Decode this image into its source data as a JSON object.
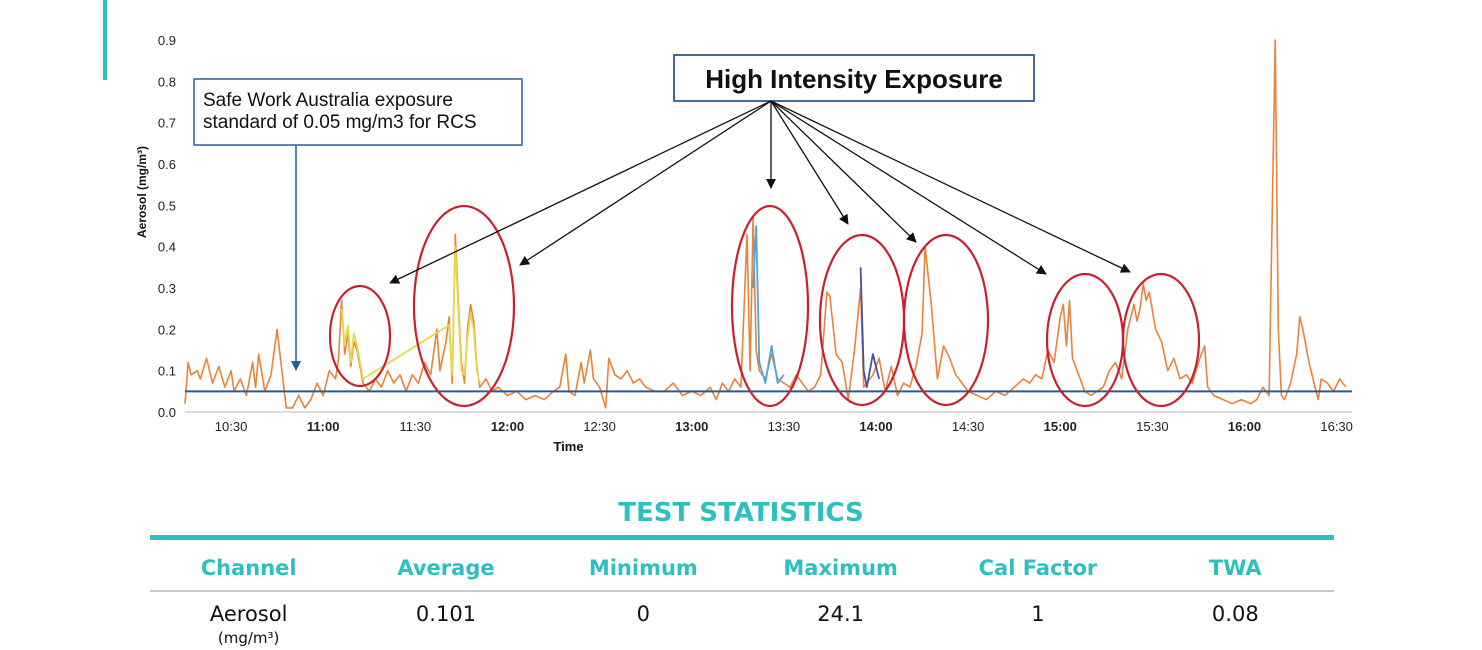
{
  "chart_data": {
    "type": "line",
    "xlabel": "Time",
    "ylabel": "Aerosol (mg/m³)",
    "ylim": [
      0,
      0.9
    ],
    "xlim": [
      "10:15",
      "16:35"
    ],
    "y_ticks": [
      "0.0",
      "0.1",
      "0.2",
      "0.3",
      "0.4",
      "0.5",
      "0.6",
      "0.7",
      "0.8",
      "0.9"
    ],
    "x_ticks": [
      {
        "label": "10:30",
        "t": "10:30",
        "bold": false
      },
      {
        "label": "11:00",
        "t": "11:00",
        "bold": true
      },
      {
        "label": "11:30",
        "t": "11:30",
        "bold": false
      },
      {
        "label": "12:00",
        "t": "12:00",
        "bold": true
      },
      {
        "label": "12:30",
        "t": "12:30",
        "bold": false
      },
      {
        "label": "13:00",
        "t": "13:00",
        "bold": true
      },
      {
        "label": "13:30",
        "t": "13:30",
        "bold": false
      },
      {
        "label": "14:00",
        "t": "14:00",
        "bold": true
      },
      {
        "label": "14:30",
        "t": "14:30",
        "bold": false
      },
      {
        "label": "15:00",
        "t": "15:00",
        "bold": true
      },
      {
        "label": "15:30",
        "t": "15:30",
        "bold": false
      },
      {
        "label": "16:00",
        "t": "16:00",
        "bold": true
      },
      {
        "label": "16:30",
        "t": "16:30",
        "bold": false
      }
    ],
    "grid": false,
    "reference_line": {
      "y": 0.05,
      "color": "#1f5f9f"
    },
    "series": [
      {
        "color": "#e8833a",
        "points": [
          [
            "10:15",
            0.02
          ],
          [
            "10:16",
            0.12
          ],
          [
            "10:17",
            0.09
          ],
          [
            "10:19",
            0.1
          ],
          [
            "10:20",
            0.08
          ],
          [
            "10:22",
            0.13
          ],
          [
            "10:24",
            0.07
          ],
          [
            "10:26",
            0.11
          ],
          [
            "10:28",
            0.06
          ],
          [
            "10:30",
            0.1
          ],
          [
            "10:31",
            0.05
          ],
          [
            "10:33",
            0.08
          ],
          [
            "10:35",
            0.04
          ],
          [
            "10:37",
            0.12
          ],
          [
            "10:38",
            0.06
          ],
          [
            "10:39",
            0.14
          ],
          [
            "10:41",
            0.05
          ],
          [
            "10:43",
            0.09
          ],
          [
            "10:45",
            0.2
          ],
          [
            "10:47",
            0.07
          ],
          [
            "10:48",
            0.01
          ],
          [
            "10:50",
            0.01
          ],
          [
            "10:52",
            0.04
          ],
          [
            "10:54",
            0.01
          ],
          [
            "10:56",
            0.03
          ],
          [
            "10:58",
            0.07
          ],
          [
            "11:00",
            0.04
          ],
          [
            "11:02",
            0.1
          ],
          [
            "11:04",
            0.08
          ],
          [
            "11:05",
            0.13
          ],
          [
            "11:06",
            0.27
          ],
          [
            "11:07",
            0.14
          ],
          [
            "11:08",
            0.19
          ],
          [
            "11:09",
            0.11
          ],
          [
            "11:10",
            0.17
          ],
          [
            "11:11",
            0.15
          ],
          [
            "11:13",
            0.07
          ],
          [
            "11:15",
            0.05
          ],
          [
            "11:17",
            0.08
          ],
          [
            "11:19",
            0.06
          ],
          [
            "11:21",
            0.1
          ],
          [
            "11:23",
            0.07
          ],
          [
            "11:25",
            0.09
          ],
          [
            "11:27",
            0.05
          ],
          [
            "11:29",
            0.09
          ],
          [
            "11:31",
            0.07
          ],
          [
            "11:33",
            0.12
          ],
          [
            "11:35",
            0.09
          ],
          [
            "11:37",
            0.2
          ],
          [
            "11:38",
            0.1
          ],
          [
            "11:40",
            0.17
          ],
          [
            "11:41",
            0.23
          ],
          [
            "11:42",
            0.07
          ],
          [
            "11:43",
            0.43
          ],
          [
            "11:44",
            0.27
          ],
          [
            "11:45",
            0.12
          ],
          [
            "11:46",
            0.07
          ],
          [
            "11:47",
            0.2
          ],
          [
            "11:48",
            0.26
          ],
          [
            "11:49",
            0.22
          ],
          [
            "11:50",
            0.11
          ],
          [
            "11:51",
            0.06
          ],
          [
            "11:53",
            0.08
          ],
          [
            "11:55",
            0.05
          ],
          [
            "11:57",
            0.06
          ],
          [
            "12:00",
            0.04
          ],
          [
            "12:03",
            0.05
          ],
          [
            "12:06",
            0.03
          ],
          [
            "12:09",
            0.04
          ],
          [
            "12:12",
            0.03
          ],
          [
            "12:15",
            0.05
          ],
          [
            "12:17",
            0.06
          ],
          [
            "12:19",
            0.14
          ],
          [
            "12:20",
            0.05
          ],
          [
            "12:22",
            0.04
          ],
          [
            "12:24",
            0.12
          ],
          [
            "12:25",
            0.07
          ],
          [
            "12:27",
            0.15
          ],
          [
            "12:28",
            0.08
          ],
          [
            "12:30",
            0.06
          ],
          [
            "12:32",
            0.01
          ],
          [
            "12:33",
            0.13
          ],
          [
            "12:35",
            0.09
          ],
          [
            "12:37",
            0.08
          ],
          [
            "12:39",
            0.1
          ],
          [
            "12:41",
            0.07
          ],
          [
            "12:43",
            0.08
          ],
          [
            "12:45",
            0.06
          ],
          [
            "12:48",
            0.05
          ],
          [
            "12:51",
            0.05
          ],
          [
            "12:54",
            0.07
          ],
          [
            "12:57",
            0.04
          ],
          [
            "13:00",
            0.05
          ],
          [
            "13:03",
            0.04
          ],
          [
            "13:06",
            0.06
          ],
          [
            "13:08",
            0.03
          ],
          [
            "13:10",
            0.07
          ],
          [
            "13:12",
            0.05
          ],
          [
            "13:14",
            0.08
          ],
          [
            "13:16",
            0.06
          ],
          [
            "13:18",
            0.43
          ],
          [
            "13:19",
            0.1
          ],
          [
            "13:20",
            0.47
          ],
          [
            "13:21",
            0.15
          ],
          [
            "13:22",
            0.1
          ],
          [
            "13:24",
            0.08
          ],
          [
            "13:26",
            0.14
          ],
          [
            "13:28",
            0.08
          ],
          [
            "13:30",
            0.07
          ],
          [
            "13:32",
            0.06
          ],
          [
            "13:34",
            0.09
          ],
          [
            "13:36",
            0.07
          ],
          [
            "13:38",
            0.05
          ],
          [
            "13:40",
            0.06
          ],
          [
            "13:42",
            0.09
          ],
          [
            "13:44",
            0.29
          ],
          [
            "13:45",
            0.28
          ],
          [
            "13:47",
            0.14
          ],
          [
            "13:49",
            0.12
          ],
          [
            "13:51",
            0.03
          ],
          [
            "13:53",
            0.15
          ],
          [
            "13:55",
            0.3
          ],
          [
            "13:56",
            0.06
          ],
          [
            "13:57",
            0.07
          ],
          [
            "13:59",
            0.09
          ],
          [
            "14:01",
            0.13
          ],
          [
            "14:03",
            0.05
          ],
          [
            "14:05",
            0.11
          ],
          [
            "14:07",
            0.04
          ],
          [
            "14:09",
            0.07
          ],
          [
            "14:11",
            0.06
          ],
          [
            "14:13",
            0.11
          ],
          [
            "14:15",
            0.19
          ],
          [
            "14:16",
            0.4
          ],
          [
            "14:18",
            0.26
          ],
          [
            "14:20",
            0.08
          ],
          [
            "14:22",
            0.16
          ],
          [
            "14:24",
            0.13
          ],
          [
            "14:26",
            0.09
          ],
          [
            "14:28",
            0.07
          ],
          [
            "14:30",
            0.05
          ],
          [
            "14:33",
            0.04
          ],
          [
            "14:36",
            0.03
          ],
          [
            "14:39",
            0.05
          ],
          [
            "14:42",
            0.04
          ],
          [
            "14:45",
            0.06
          ],
          [
            "14:48",
            0.08
          ],
          [
            "14:50",
            0.07
          ],
          [
            "14:52",
            0.09
          ],
          [
            "14:54",
            0.08
          ],
          [
            "14:56",
            0.15
          ],
          [
            "14:58",
            0.12
          ],
          [
            "15:00",
            0.23
          ],
          [
            "15:01",
            0.26
          ],
          [
            "15:02",
            0.16
          ],
          [
            "15:03",
            0.27
          ],
          [
            "15:04",
            0.13
          ],
          [
            "15:06",
            0.09
          ],
          [
            "15:08",
            0.05
          ],
          [
            "15:10",
            0.04
          ],
          [
            "15:12",
            0.05
          ],
          [
            "15:14",
            0.06
          ],
          [
            "15:16",
            0.1
          ],
          [
            "15:18",
            0.12
          ],
          [
            "15:20",
            0.08
          ],
          [
            "15:22",
            0.2
          ],
          [
            "15:23",
            0.23
          ],
          [
            "15:24",
            0.26
          ],
          [
            "15:25",
            0.22
          ],
          [
            "15:26",
            0.25
          ],
          [
            "15:27",
            0.31
          ],
          [
            "15:28",
            0.27
          ],
          [
            "15:29",
            0.29
          ],
          [
            "15:31",
            0.2
          ],
          [
            "15:33",
            0.17
          ],
          [
            "15:35",
            0.1
          ],
          [
            "15:37",
            0.13
          ],
          [
            "15:39",
            0.08
          ],
          [
            "15:41",
            0.09
          ],
          [
            "15:43",
            0.07
          ],
          [
            "15:45",
            0.12
          ],
          [
            "15:47",
            0.16
          ],
          [
            "15:48",
            0.06
          ],
          [
            "15:50",
            0.04
          ],
          [
            "15:53",
            0.03
          ],
          [
            "15:56",
            0.02
          ],
          [
            "15:59",
            0.03
          ],
          [
            "16:02",
            0.02
          ],
          [
            "16:04",
            0.03
          ],
          [
            "16:06",
            0.06
          ],
          [
            "16:08",
            0.04
          ],
          [
            "16:10",
            0.9
          ],
          [
            "16:11",
            0.2
          ],
          [
            "16:12",
            0.04
          ],
          [
            "16:13",
            0.03
          ],
          [
            "16:15",
            0.07
          ],
          [
            "16:17",
            0.14
          ],
          [
            "16:18",
            0.23
          ],
          [
            "16:19",
            0.2
          ],
          [
            "16:21",
            0.12
          ],
          [
            "16:23",
            0.06
          ],
          [
            "16:24",
            0.03
          ],
          [
            "16:25",
            0.08
          ],
          [
            "16:27",
            0.07
          ],
          [
            "16:29",
            0.05
          ],
          [
            "16:31",
            0.08
          ],
          [
            "16:33",
            0.06
          ]
        ]
      },
      {
        "color": "#e6d84a",
        "points": [
          [
            "11:06",
            0.25
          ],
          [
            "11:07",
            0.16
          ],
          [
            "11:08",
            0.21
          ],
          [
            "11:09",
            0.12
          ],
          [
            "11:10",
            0.19
          ],
          [
            "11:11",
            0.16
          ],
          [
            "11:13",
            0.08
          ],
          [
            "11:41",
            0.21
          ],
          [
            "11:42",
            0.09
          ],
          [
            "11:43",
            0.4
          ],
          [
            "11:44",
            0.25
          ],
          [
            "11:45",
            0.1
          ],
          [
            "11:46",
            0.09
          ],
          [
            "11:47",
            0.18
          ],
          [
            "11:48",
            0.24
          ],
          [
            "11:49",
            0.2
          ],
          [
            "11:50",
            0.1
          ],
          [
            "11:51",
            0.07
          ]
        ]
      },
      {
        "color": "#4da6d8",
        "points": [
          [
            "13:20",
            0.3
          ],
          [
            "13:21",
            0.45
          ],
          [
            "13:22",
            0.12
          ],
          [
            "13:24",
            0.07
          ],
          [
            "13:26",
            0.16
          ],
          [
            "13:28",
            0.07
          ],
          [
            "13:30",
            0.09
          ]
        ]
      },
      {
        "color": "#4b4f9e",
        "points": [
          [
            "13:55",
            0.35
          ],
          [
            "13:56",
            0.1
          ],
          [
            "13:57",
            0.06
          ],
          [
            "13:59",
            0.14
          ],
          [
            "14:01",
            0.08
          ]
        ]
      }
    ],
    "highlights": [
      "11:03-11:12",
      "11:36-11:52",
      "13:15-13:26",
      "13:42-13:59",
      "14:07-14:21",
      "14:56-15:09",
      "15:19-15:31"
    ],
    "annotations": [
      {
        "text_lines": [
          "Safe Work Australia exposure",
          "standard of 0.05 mg/m3 for RCS"
        ],
        "arrow_to": [
          "10:51",
          0.1
        ]
      },
      {
        "text_lines": [
          "High Intensity Exposure"
        ],
        "arrows_to": [
          [
            "11:05",
            0.3
          ],
          [
            "11:58",
            0.35
          ],
          [
            "13:20",
            0.53
          ],
          [
            "13:49",
            0.44
          ],
          [
            "14:12",
            0.41
          ],
          [
            "14:55",
            0.33
          ],
          [
            "15:26",
            0.33
          ]
        ]
      }
    ]
  },
  "stats": {
    "title": "TEST STATISTICS",
    "headers": [
      "Channel",
      "Average",
      "Minimum",
      "Maximum",
      "Cal Factor",
      "TWA"
    ],
    "row": {
      "channel": "Aerosol",
      "channel_unit": "(mg/m³)",
      "average": "0.101",
      "minimum": "0",
      "maximum": "24.1",
      "cal_factor": "1",
      "twa": "0.08"
    }
  }
}
